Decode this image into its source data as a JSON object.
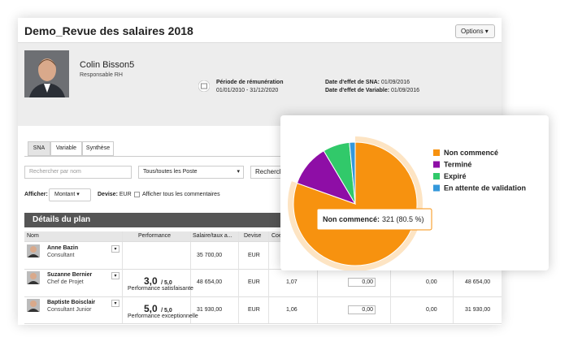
{
  "header": {
    "title": "Demo_Revue des salaires 2018",
    "options": "Options"
  },
  "profile": {
    "name": "Colin Bisson5",
    "role": "Responsable RH",
    "period_label": "Période de rémunération",
    "period": "01/01/2010 - 31/12/2020",
    "sna_label": "Date d'effet de SNA:",
    "sna_date": "01/09/2016",
    "var_label": "Date d'effet de Variable:",
    "var_date": "01/09/2016"
  },
  "tabs": [
    "SNA",
    "Variable",
    "Synthèse"
  ],
  "filters": {
    "search_placeholder": "Rechercher par nom",
    "poste": "Tous/toutes les Poste",
    "search_button": "Recherch",
    "show_label": "Afficher:",
    "show_value": "Montant",
    "currency_label": "Devise:",
    "currency": "EUR",
    "comments": "Afficher tous les commentaires"
  },
  "section": "Détails du plan",
  "table": {
    "columns": [
      "Nom",
      "Performance",
      "Salaire/taux a...",
      "Devise",
      "Coe"
    ],
    "rows": [
      {
        "name": "Anne Bazin",
        "role": "Consultant",
        "salary": "35 700,00",
        "currency": "EUR"
      },
      {
        "name": "Suzanne Bernier",
        "role": "Chef de Projet",
        "rating": "3,0",
        "scale": "/ 5,0",
        "rating_label": "Performance satisfaisante",
        "salary": "48 654,00",
        "currency": "EUR",
        "coef": "1,07",
        "input": "0,00",
        "value": "0,00",
        "total": "48 654,00"
      },
      {
        "name": "Baptiste Boisclair",
        "role": "Consultant Junior",
        "rating": "5,0",
        "scale": "/ 5,0",
        "rating_label": "Performance exceptionnelle",
        "salary": "31 930,00",
        "currency": "EUR",
        "coef": "1,06",
        "input": "0,00",
        "value": "0,00",
        "total": "31 930,00"
      }
    ]
  },
  "chart_data": {
    "type": "pie",
    "categories": [
      "Non commencé",
      "Terminé",
      "Expiré",
      "En attente de validation"
    ],
    "values": [
      321,
      44,
      28,
      6
    ],
    "colors": [
      "#f7920f",
      "#8e0ea6",
      "#31c96a",
      "#3498db"
    ],
    "tooltip": {
      "name": "Non commencé:",
      "value": "321 (80.5 %)"
    }
  }
}
